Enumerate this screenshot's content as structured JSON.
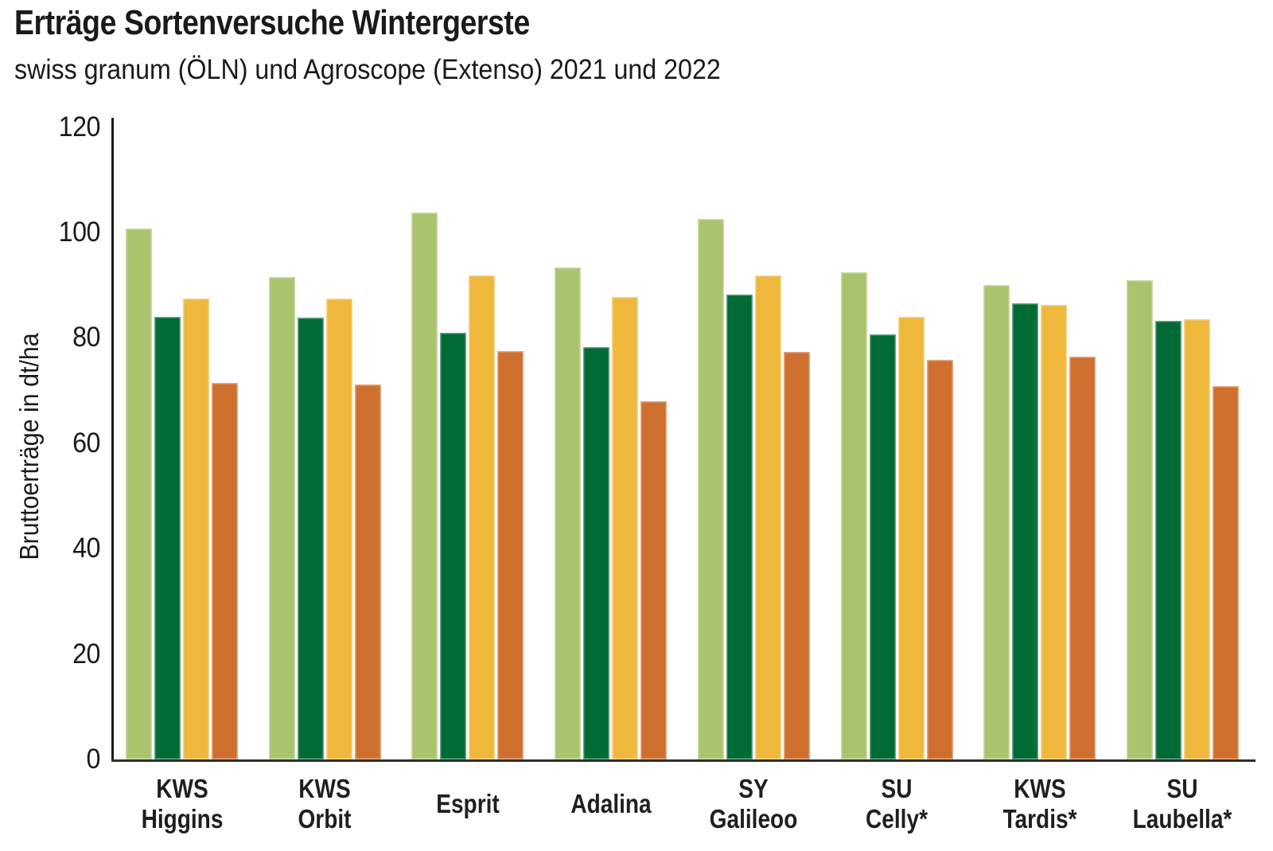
{
  "header": {
    "title": "Erträge Sortenversuche Wintergerste",
    "subtitle": "swiss granum (ÖLN) und Agroscope (Extenso) 2021 und 2022"
  },
  "chart_data": {
    "type": "bar",
    "title": "Erträge Sortenversuche Wintergerste",
    "subtitle": "swiss granum (ÖLN) und Agroscope (Extenso) 2021 und 2022",
    "xlabel": "",
    "ylabel": "Bruttoerträge in dt/ha",
    "ylim": [
      0,
      120
    ],
    "yticks": [
      0,
      20,
      40,
      60,
      80,
      100,
      120
    ],
    "grid": false,
    "legend": "none",
    "categories": [
      "KWS\nHiggins",
      "KWS\nOrbit",
      "Esprit",
      "Adalina",
      "SY\nGalileoo",
      "SU\nCelly*",
      "KWS\nTardis*",
      "SU\nLaubella*"
    ],
    "series": [
      {
        "id": "series-1",
        "color": "#a9c46d",
        "values": [
          100.8,
          91.5,
          103.8,
          93.4,
          102.5,
          92.5,
          90.0,
          91.0
        ]
      },
      {
        "id": "series-2",
        "color": "#006b35",
        "values": [
          84.0,
          83.8,
          81.0,
          78.3,
          88.2,
          80.7,
          86.5,
          83.3
        ]
      },
      {
        "id": "series-3",
        "color": "#efb83c",
        "values": [
          87.4,
          87.4,
          91.8,
          87.8,
          91.8,
          84.0,
          86.2,
          83.6
        ]
      },
      {
        "id": "series-4",
        "color": "#cf6f2e",
        "values": [
          71.4,
          71.1,
          77.5,
          68.0,
          77.3,
          75.9,
          76.4,
          70.9
        ]
      }
    ]
  },
  "colors": {
    "axis": "#1a1a1a",
    "baseline": "#2e2e2e",
    "text": "#1a1a1a",
    "background": "#ffffff"
  }
}
